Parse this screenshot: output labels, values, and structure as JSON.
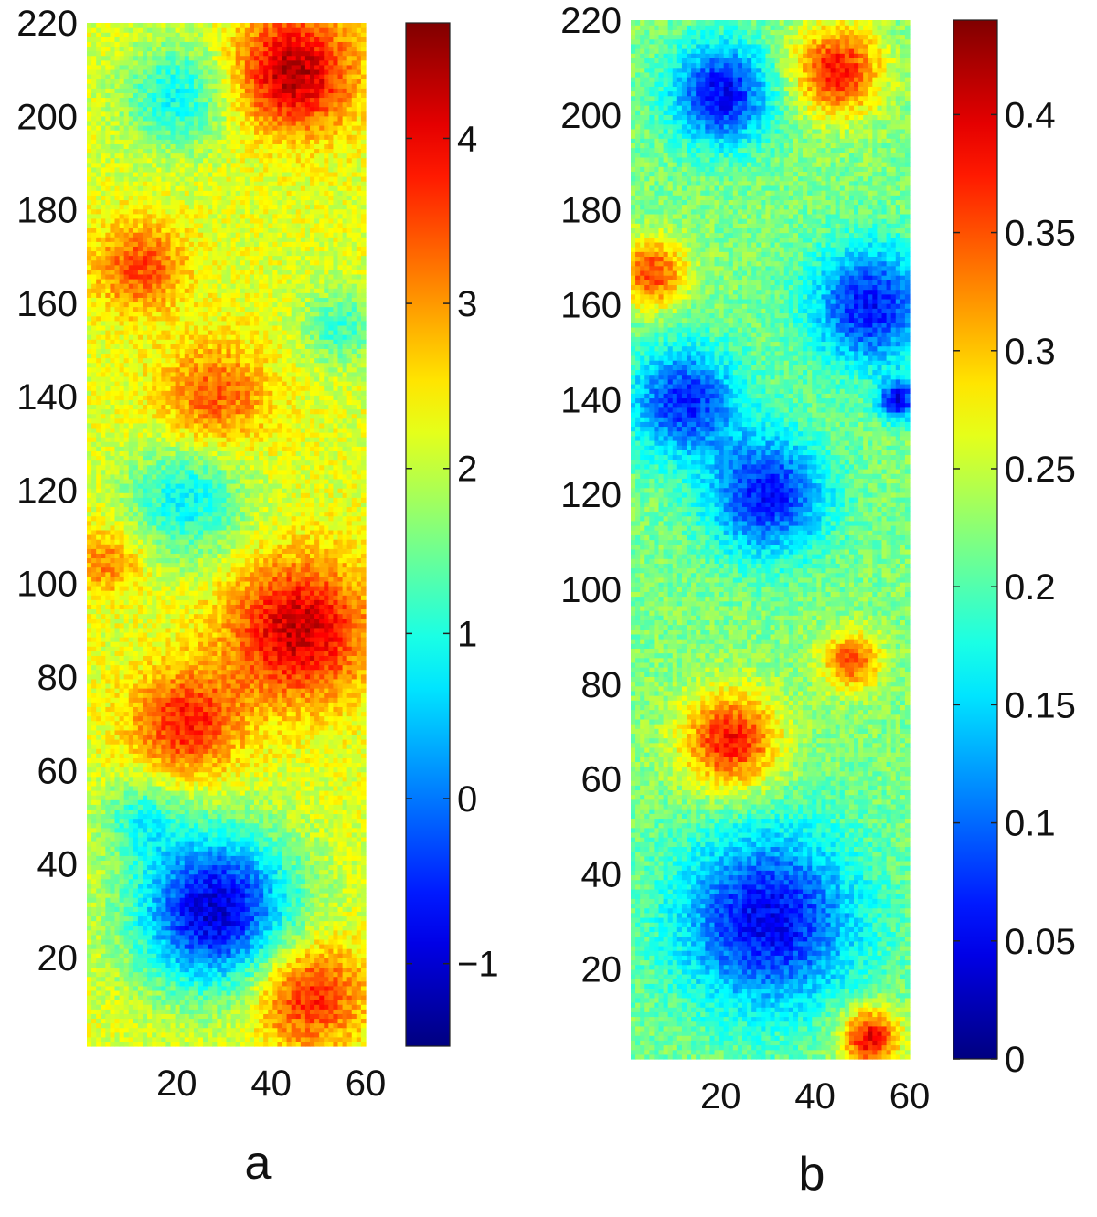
{
  "chart_data": [
    {
      "type": "heatmap",
      "panel_label": "a",
      "title": "",
      "xlabel": "",
      "ylabel": "",
      "xlim": [
        1,
        60
      ],
      "ylim": [
        1,
        220
      ],
      "xticks": [
        20,
        40,
        60
      ],
      "yticks": [
        20,
        40,
        60,
        80,
        100,
        120,
        140,
        160,
        180,
        200,
        220
      ],
      "colormap": "jet",
      "clim": [
        -1.5,
        4.7
      ],
      "colorbar_ticks": [
        -1,
        0,
        1,
        2,
        3,
        4
      ],
      "colorbar_tick_labels": [
        "−1",
        "0",
        "1",
        "2",
        "3",
        "4"
      ],
      "grid": false,
      "blobs": [
        {
          "x": 45,
          "y": 210,
          "r": 12,
          "v": 4.4
        },
        {
          "x": 12,
          "y": 168,
          "r": 9,
          "v": 3.5
        },
        {
          "x": 28,
          "y": 140,
          "r": 11,
          "v": 3.4
        },
        {
          "x": 46,
          "y": 90,
          "r": 14,
          "v": 4.3
        },
        {
          "x": 22,
          "y": 70,
          "r": 11,
          "v": 3.8
        },
        {
          "x": 48,
          "y": 12,
          "r": 11,
          "v": 3.9
        },
        {
          "x": 28,
          "y": 30,
          "r": 16,
          "v": -1.0
        },
        {
          "x": 22,
          "y": 118,
          "r": 12,
          "v": 0.8
        },
        {
          "x": 20,
          "y": 205,
          "r": 11,
          "v": 0.9
        },
        {
          "x": 55,
          "y": 155,
          "r": 8,
          "v": 1.2
        },
        {
          "x": 5,
          "y": 105,
          "r": 7,
          "v": 3.2
        },
        {
          "x": 12,
          "y": 50,
          "r": 8,
          "v": 1.2
        }
      ],
      "base_value": 2.2
    },
    {
      "type": "heatmap",
      "panel_label": "b",
      "title": "",
      "xlabel": "",
      "ylabel": "",
      "xlim": [
        1,
        60
      ],
      "ylim": [
        1,
        220
      ],
      "xticks": [
        20,
        40,
        60
      ],
      "yticks": [
        20,
        40,
        60,
        80,
        100,
        120,
        140,
        160,
        180,
        200,
        220
      ],
      "colormap": "jet",
      "clim": [
        0,
        0.44
      ],
      "colorbar_ticks": [
        0,
        0.05,
        0.1,
        0.15,
        0.2,
        0.25,
        0.3,
        0.35,
        0.4
      ],
      "colorbar_tick_labels": [
        "0",
        "0.05",
        "0.1",
        "0.15",
        "0.2",
        "0.25",
        "0.3",
        "0.35",
        "0.4"
      ],
      "grid": false,
      "blobs": [
        {
          "x": 45,
          "y": 210,
          "r": 9,
          "v": 0.38
        },
        {
          "x": 5,
          "y": 167,
          "r": 7,
          "v": 0.36
        },
        {
          "x": 20,
          "y": 205,
          "r": 10,
          "v": 0.05
        },
        {
          "x": 52,
          "y": 160,
          "r": 12,
          "v": 0.06
        },
        {
          "x": 12,
          "y": 140,
          "r": 11,
          "v": 0.07
        },
        {
          "x": 30,
          "y": 120,
          "r": 12,
          "v": 0.06
        },
        {
          "x": 22,
          "y": 68,
          "r": 10,
          "v": 0.38
        },
        {
          "x": 48,
          "y": 85,
          "r": 6,
          "v": 0.35
        },
        {
          "x": 52,
          "y": 5,
          "r": 6,
          "v": 0.4
        },
        {
          "x": 30,
          "y": 30,
          "r": 18,
          "v": 0.05
        },
        {
          "x": 58,
          "y": 140,
          "r": 4,
          "v": 0.05
        }
      ],
      "base_value": 0.22
    }
  ]
}
